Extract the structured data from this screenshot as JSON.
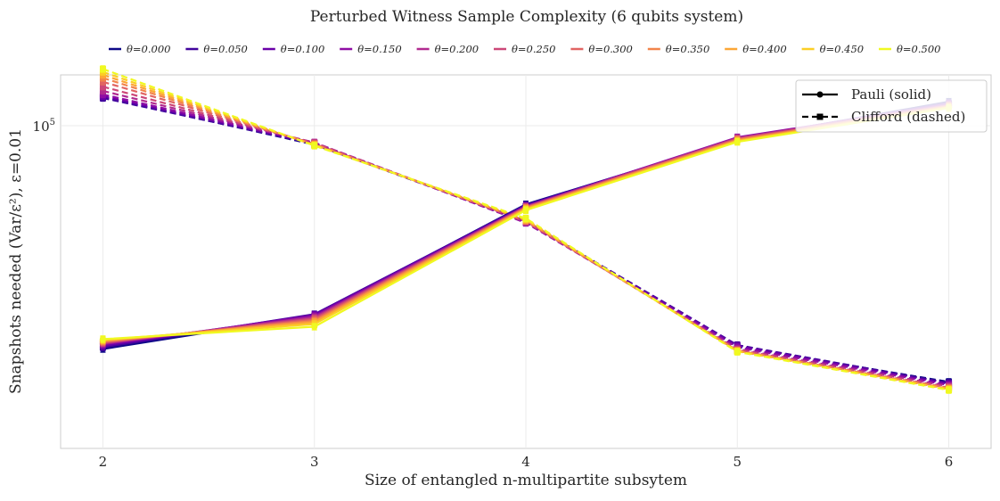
{
  "chart_data": {
    "type": "line",
    "title": "Perturbed Witness Sample Complexity (6 qubits system)",
    "xlabel": "Size of entangled n-multipartite subsytem",
    "ylabel": "Snapshots needed (Var/ε²), ε=0.01",
    "x": [
      2,
      3,
      4,
      5,
      6
    ],
    "x_ticks": [
      "2",
      "3",
      "4",
      "5",
      "6"
    ],
    "xlim": [
      1.8,
      6.2
    ],
    "yscale": "log",
    "ylim": [
      6200,
      155000
    ],
    "y_ticks": [
      {
        "value": 100000,
        "base": "10",
        "exp": "5"
      }
    ],
    "grid": true,
    "top_legend_position": "top-center",
    "style_legend_position": "top-right",
    "style_legend": [
      {
        "label": "Pauli (solid)",
        "marker": "circle",
        "dash": "solid"
      },
      {
        "label": "Clifford (dashed)",
        "marker": "square",
        "dash": "dashed"
      }
    ],
    "series": [
      {
        "name": "θ=0.000",
        "color": "#0d0887",
        "pauli": [
          14600,
          19500,
          50800,
          89000,
          123000
        ],
        "clifford": [
          128000,
          85000,
          44000,
          14900,
          11000
        ]
      },
      {
        "name": "θ=0.050",
        "color": "#41049d",
        "pauli": [
          14800,
          19700,
          50500,
          89500,
          122000
        ],
        "clifford": [
          127000,
          85500,
          43800,
          15100,
          10900
        ]
      },
      {
        "name": "θ=0.100",
        "color": "#6a00a8",
        "pauli": [
          15000,
          19600,
          50200,
          90000,
          121000
        ],
        "clifford": [
          129000,
          86000,
          43500,
          15000,
          10800
        ]
      },
      {
        "name": "θ=0.150",
        "color": "#8f0da4",
        "pauli": [
          15200,
          19400,
          50000,
          90500,
          120000
        ],
        "clifford": [
          131000,
          86500,
          43300,
          14800,
          10700
        ]
      },
      {
        "name": "θ=0.200",
        "color": "#b12a90",
        "pauli": [
          15300,
          19200,
          49800,
          90000,
          119500
        ],
        "clifford": [
          135000,
          86500,
          43600,
          14600,
          10600
        ]
      },
      {
        "name": "θ=0.250",
        "color": "#cc4778",
        "pauli": [
          15400,
          19000,
          49600,
          89500,
          119000
        ],
        "clifford": [
          140000,
          86000,
          43800,
          14500,
          10500
        ]
      },
      {
        "name": "θ=0.300",
        "color": "#e16462",
        "pauli": [
          15500,
          18800,
          49400,
          89000,
          118500
        ],
        "clifford": [
          146000,
          85500,
          44000,
          14400,
          10450
        ]
      },
      {
        "name": "θ=0.350",
        "color": "#f2844b",
        "pauli": [
          15600,
          18600,
          49200,
          88500,
          118000
        ],
        "clifford": [
          151000,
          85000,
          44200,
          14400,
          10400
        ]
      },
      {
        "name": "θ=0.400",
        "color": "#fca636",
        "pauli": [
          15700,
          18400,
          48900,
          88000,
          117500
        ],
        "clifford": [
          155000,
          84800,
          44400,
          14350,
          10350
        ]
      },
      {
        "name": "θ=0.450",
        "color": "#fcce25",
        "pauli": [
          15800,
          18100,
          48600,
          87500,
          117000
        ],
        "clifford": [
          159000,
          84500,
          44700,
          14300,
          10300
        ]
      },
      {
        "name": "θ=0.500",
        "color": "#f0f921",
        "pauli": [
          15900,
          17700,
          48300,
          87000,
          116500
        ],
        "clifford": [
          163000,
          84200,
          45000,
          14250,
          10250
        ]
      }
    ]
  }
}
